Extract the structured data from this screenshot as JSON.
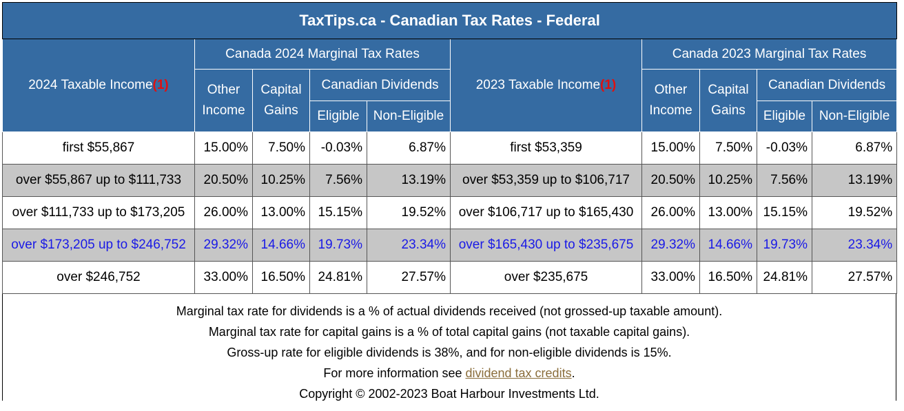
{
  "title": "TaxTips.ca - Canadian Tax Rates - Federal",
  "header": {
    "income_2024": "2024 Taxable Income",
    "income_2023": "2023 Taxable Income",
    "ref": "(1)",
    "group_2024": "Canada 2024 Marginal Tax Rates",
    "group_2023": "Canada 2023 Marginal Tax Rates",
    "other_1": "Other",
    "other_2": "Income",
    "cap_1": "Capital",
    "cap_2": "Gains",
    "dividends": "Canadian Dividends",
    "eligible": "Eligible",
    "non_eligible": "Non-Eligible"
  },
  "rows": [
    {
      "inc24": "first $55,867",
      "o24": "15.00%",
      "c24": "7.50%",
      "e24": "-0.03%",
      "n24": "6.87%",
      "inc23": "first $53,359",
      "o23": "15.00%",
      "c23": "7.50%",
      "e23": "-0.03%",
      "n23": "6.87%"
    },
    {
      "inc24": "over $55,867 up to $111,733",
      "o24": "20.50%",
      "c24": "10.25%",
      "e24": "7.56%",
      "n24": "13.19%",
      "inc23": "over $53,359 up to $106,717",
      "o23": "20.50%",
      "c23": "10.25%",
      "e23": "7.56%",
      "n23": "13.19%"
    },
    {
      "inc24": "over $111,733 up to $173,205",
      "o24": "26.00%",
      "c24": "13.00%",
      "e24": "15.15%",
      "n24": "19.52%",
      "inc23": "over $106,717 up to $165,430",
      "o23": "26.00%",
      "c23": "13.00%",
      "e23": "15.15%",
      "n23": "19.52%"
    },
    {
      "inc24": "over $173,205 up to $246,752",
      "o24": "29.32%",
      "c24": "14.66%",
      "e24": "19.73%",
      "n24": "23.34%",
      "inc23": "over $165,430 up to $235,675",
      "o23": "29.32%",
      "c23": "14.66%",
      "e23": "19.73%",
      "n23": "23.34%"
    },
    {
      "inc24": "over $246,752",
      "o24": "33.00%",
      "c24": "16.50%",
      "e24": "24.81%",
      "n24": "27.57%",
      "inc23": "over $235,675",
      "o23": "33.00%",
      "c23": "16.50%",
      "e23": "24.81%",
      "n23": "27.57%"
    }
  ],
  "notes": {
    "line1": "Marginal tax rate for dividends is a % of actual dividends received (not grossed-up taxable amount).",
    "line2": "Marginal tax rate for capital gains is a % of total capital gains (not taxable capital gains).",
    "line3": "Gross-up rate for eligible dividends is 38%, and for non-eligible dividends is 15%.",
    "line4_prefix": "For more information see ",
    "line4_link": "dividend tax credits",
    "line4_suffix": ".",
    "copyright": "Copyright © 2002-2023 Boat Harbour Investments Ltd."
  },
  "colors": {
    "header_bg": "#356ba2",
    "shade_bg": "#c6c6c6",
    "highlight_text": "#1a1ae6",
    "ref_red": "#e01010",
    "link": "#8a6d3b"
  }
}
